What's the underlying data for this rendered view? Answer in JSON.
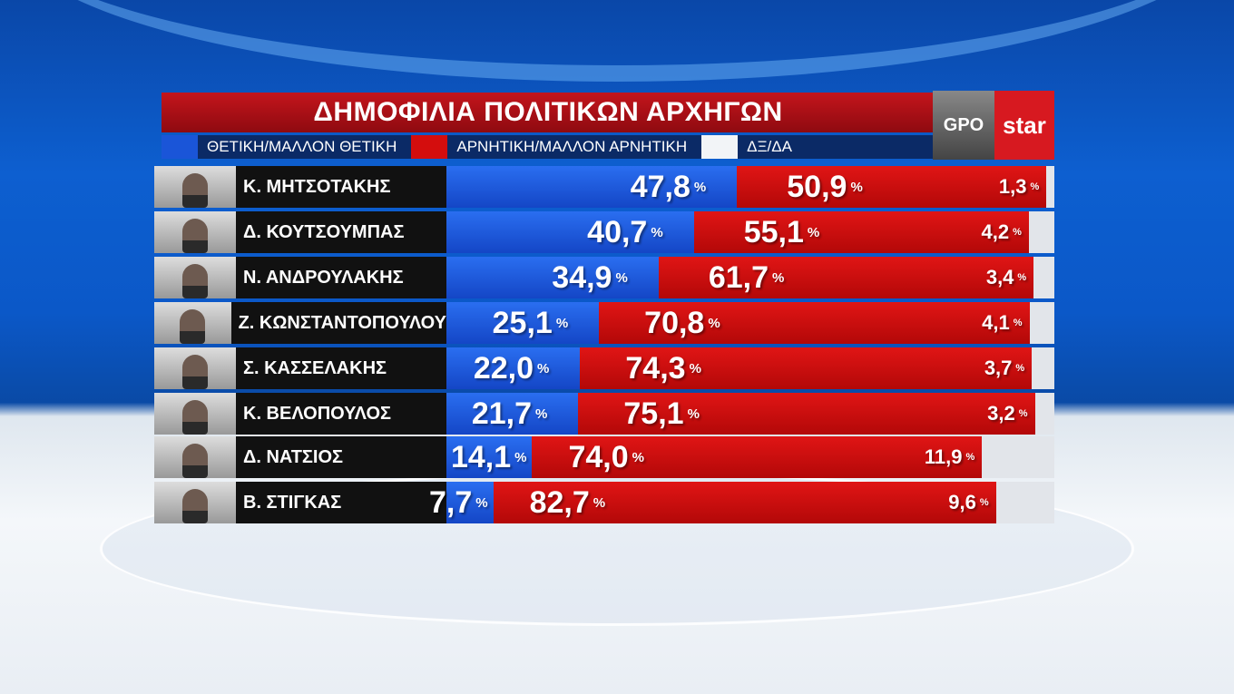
{
  "title": "ΔΗΜΟΦΙΛΙΑ ΠΟΛΙΤΙΚΩΝ ΑΡΧΗΓΩΝ",
  "logo": {
    "left": "GPO",
    "right": "star"
  },
  "chart_data": {
    "type": "bar",
    "stacked": true,
    "orientation": "horizontal",
    "title": "ΔΗΜΟΦΙΛΙΑ ΠΟΛΙΤΙΚΩΝ ΑΡΧΗΓΩΝ",
    "legend_position": "top",
    "categories": [
      "Κ. ΜΗΤΣΟΤΑΚΗΣ",
      "Δ. ΚΟΥΤΣΟΥΜΠΑΣ",
      "Ν. ΑΝΔΡΟΥΛΑΚΗΣ",
      "Ζ. ΚΩΝΣΤΑΝΤΟΠΟΥΛΟΥ",
      "Σ. ΚΑΣΣΕΛΑΚΗΣ",
      "Κ. ΒΕΛΟΠΟΥΛΟΣ",
      "Δ. ΝΑΤΣΙΟΣ",
      "Β. ΣΤΙΓΚΑΣ"
    ],
    "series": [
      {
        "name": "ΘΕΤΙΚΗ/ΜΑΛΛΟΝ ΘΕΤΙΚΗ",
        "color": "#1a55d8",
        "values": [
          47.8,
          40.7,
          34.9,
          25.1,
          22.0,
          21.7,
          14.1,
          7.7
        ],
        "labels": [
          "47,8",
          "40,7",
          "34,9",
          "25,1",
          "22,0",
          "21,7",
          "14,1",
          "7,7"
        ]
      },
      {
        "name": "ΑΡΝΗΤΙΚΗ/ΜΑΛΛΟΝ ΑΡΝΗΤΙΚΗ",
        "color": "#d40d0d",
        "values": [
          50.9,
          55.1,
          61.7,
          70.8,
          74.3,
          75.1,
          74.0,
          82.7
        ],
        "labels": [
          "50,9",
          "55,1",
          "61,7",
          "70,8",
          "74,3",
          "75,1",
          "74,0",
          "82,7"
        ]
      },
      {
        "name": "ΔΞ/ΔΑ",
        "color": "#e2e5ea",
        "values": [
          1.3,
          4.2,
          3.4,
          4.1,
          3.7,
          3.2,
          11.9,
          9.6
        ],
        "labels": [
          "1,3",
          "4,2",
          "3,4",
          "4,1",
          "3,7",
          "3,2",
          "11,9",
          "9,6"
        ]
      }
    ],
    "unit": "%",
    "xlim": [
      0,
      100
    ]
  }
}
